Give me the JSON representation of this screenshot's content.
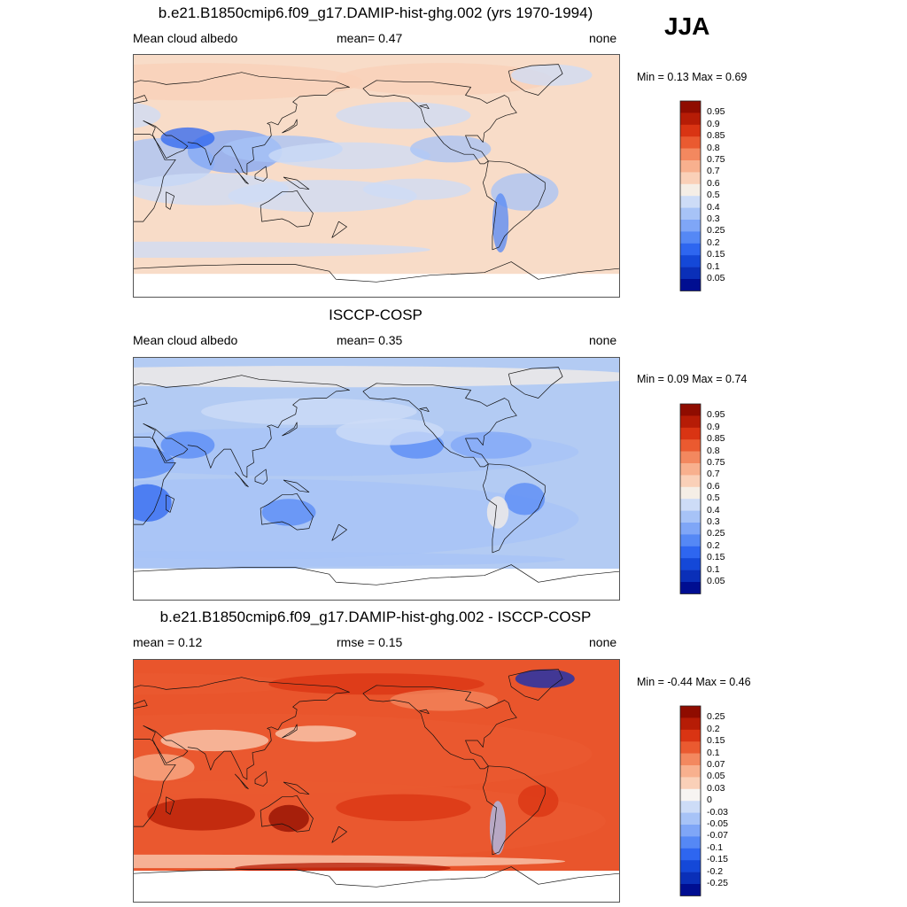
{
  "season": "JJA",
  "panels": [
    {
      "title": "b.e21.B1850cmip6.f09_g17.DAMIP-hist-ghg.002 (yrs 1970-1994)",
      "left": "Mean cloud albedo",
      "mid": "mean=   0.47",
      "right": "none",
      "minmax": "Min =   0.13 Max =   0.69",
      "scheme": "abs",
      "colors": [
        "#000e91",
        "#0a2fb8",
        "#1448d8",
        "#2e66f0",
        "#5588f5",
        "#7fa6f7",
        "#a7c3f7",
        "#cddcf7",
        "#f5eee6",
        "#fad0b8",
        "#f8b08e",
        "#f3885f",
        "#ea5a30",
        "#d93413",
        "#b61c06",
        "#8f0c00"
      ],
      "ticks": [
        "0.95",
        "0.9",
        "0.85",
        "0.8",
        "0.75",
        "0.7",
        "0.6",
        "0.5",
        "0.4",
        "0.3",
        "0.25",
        "0.2",
        "0.15",
        "0.1",
        "0.05"
      ]
    },
    {
      "title": "ISCCP-COSP",
      "left": "Mean cloud albedo",
      "mid": "mean=   0.35",
      "right": "none",
      "minmax": "Min =   0.09 Max =   0.74",
      "scheme": "abs",
      "colors": [
        "#000e91",
        "#0a2fb8",
        "#1448d8",
        "#2e66f0",
        "#5588f5",
        "#7fa6f7",
        "#a7c3f7",
        "#cddcf7",
        "#f5eee6",
        "#fad0b8",
        "#f8b08e",
        "#f3885f",
        "#ea5a30",
        "#d93413",
        "#b61c06",
        "#8f0c00"
      ],
      "ticks": [
        "0.95",
        "0.9",
        "0.85",
        "0.8",
        "0.75",
        "0.7",
        "0.6",
        "0.5",
        "0.4",
        "0.3",
        "0.25",
        "0.2",
        "0.15",
        "0.1",
        "0.05"
      ]
    },
    {
      "title": "b.e21.B1850cmip6.f09_g17.DAMIP-hist-ghg.002 - ISCCP-COSP",
      "left": "mean =   0.12",
      "mid": "rmse =   0.15",
      "right": "none",
      "minmax": "Min =  -0.44 Max =   0.46",
      "scheme": "diff",
      "colors": [
        "#000e91",
        "#0a2fb8",
        "#1448d8",
        "#2e66f0",
        "#5588f5",
        "#7fa6f7",
        "#a7c3f7",
        "#cddcf7",
        "#f7f4f2",
        "#fad0b8",
        "#f8b08e",
        "#f3885f",
        "#ea5a30",
        "#d93413",
        "#b61c06",
        "#8f0c00"
      ],
      "ticks": [
        "0.25",
        "0.2",
        "0.15",
        "0.1",
        "0.07",
        "0.05",
        "0.03",
        "0",
        "-0.03",
        "-0.05",
        "-0.07",
        "-0.1",
        "-0.15",
        "-0.2",
        "-0.25"
      ]
    }
  ]
}
